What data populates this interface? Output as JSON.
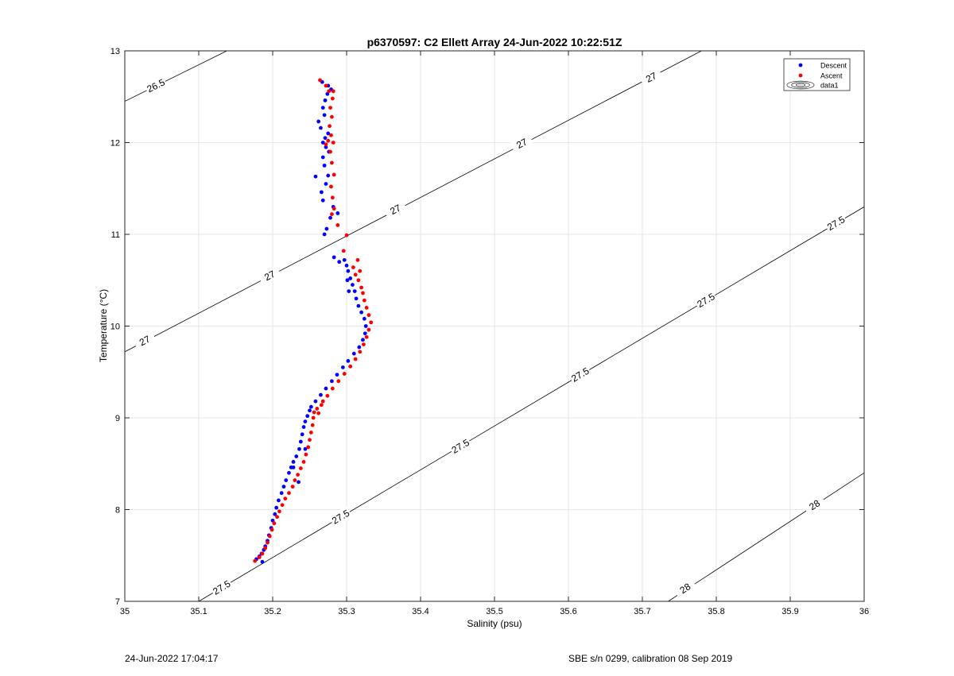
{
  "chart_data": {
    "type": "scatter",
    "title": "p6370597: C2 Ellett Array 24-Jun-2022 10:22:51Z",
    "xlabel": "Salinity (psu)",
    "ylabel": "Temperature (°C)",
    "xlim": [
      35,
      36
    ],
    "ylim": [
      7,
      13
    ],
    "xticks": [
      "35",
      "35.1",
      "35.2",
      "35.3",
      "35.4",
      "35.5",
      "35.6",
      "35.7",
      "35.8",
      "35.9",
      "36"
    ],
    "yticks": [
      "7",
      "8",
      "9",
      "10",
      "11",
      "12",
      "13"
    ],
    "grid": true,
    "legend": {
      "placement": "top-right",
      "entries": [
        "Descent",
        "Ascent",
        "data1"
      ]
    },
    "contours": [
      {
        "level": "26.5",
        "points": [
          [
            35.0,
            12.45
          ],
          [
            35.138,
            13.0
          ]
        ],
        "labels": [
          [
            35.042,
            12.62
          ]
        ]
      },
      {
        "level": "27",
        "points": [
          [
            35.0,
            9.72
          ],
          [
            35.78,
            13.0
          ]
        ],
        "labels": [
          [
            35.027,
            9.84
          ],
          [
            35.196,
            10.55
          ],
          [
            35.366,
            11.27
          ],
          [
            35.537,
            11.99
          ],
          [
            35.712,
            12.71
          ]
        ]
      },
      {
        "level": "27.5",
        "points": [
          [
            35.1,
            7.0
          ],
          [
            36.0,
            11.3
          ]
        ],
        "labels": [
          [
            35.131,
            7.15
          ],
          [
            35.292,
            7.92
          ],
          [
            35.454,
            8.69
          ],
          [
            35.616,
            9.47
          ],
          [
            35.786,
            10.28
          ],
          [
            35.962,
            11.12
          ]
        ]
      },
      {
        "level": "28",
        "points": [
          [
            35.735,
            7.0
          ],
          [
            36.0,
            8.4
          ]
        ],
        "labels": [
          [
            35.758,
            7.14
          ],
          [
            35.933,
            8.05
          ]
        ]
      }
    ],
    "series": [
      {
        "name": "Descent",
        "color": "#0000ff",
        "points": [
          [
            35.186,
            7.43
          ],
          [
            35.178,
            7.46
          ],
          [
            35.182,
            7.49
          ],
          [
            35.185,
            7.52
          ],
          [
            35.188,
            7.56
          ],
          [
            35.19,
            7.6
          ],
          [
            35.193,
            7.66
          ],
          [
            35.195,
            7.72
          ],
          [
            35.198,
            7.8
          ],
          [
            35.2,
            7.88
          ],
          [
            35.203,
            7.95
          ],
          [
            35.205,
            8.02
          ],
          [
            35.208,
            8.1
          ],
          [
            35.212,
            8.18
          ],
          [
            35.215,
            8.25
          ],
          [
            35.218,
            8.32
          ],
          [
            35.222,
            8.4
          ],
          [
            35.225,
            8.46
          ],
          [
            35.228,
            8.52
          ],
          [
            35.232,
            8.58
          ],
          [
            35.236,
            8.66
          ],
          [
            35.238,
            8.74
          ],
          [
            35.24,
            8.82
          ],
          [
            35.242,
            8.9
          ],
          [
            35.244,
            8.96
          ],
          [
            35.247,
            9.02
          ],
          [
            35.25,
            9.08
          ],
          [
            35.252,
            9.12
          ],
          [
            35.258,
            9.18
          ],
          [
            35.265,
            9.25
          ],
          [
            35.272,
            9.32
          ],
          [
            35.28,
            9.4
          ],
          [
            35.287,
            9.47
          ],
          [
            35.295,
            9.55
          ],
          [
            35.302,
            9.62
          ],
          [
            35.31,
            9.7
          ],
          [
            35.317,
            9.77
          ],
          [
            35.322,
            9.85
          ],
          [
            35.325,
            9.92
          ],
          [
            35.326,
            10.0
          ],
          [
            35.324,
            10.08
          ],
          [
            35.32,
            10.15
          ],
          [
            35.316,
            10.22
          ],
          [
            35.313,
            10.3
          ],
          [
            35.311,
            10.38
          ],
          [
            35.308,
            10.45
          ],
          [
            35.305,
            10.52
          ],
          [
            35.302,
            10.6
          ],
          [
            35.3,
            10.66
          ],
          [
            35.297,
            10.72
          ],
          [
            35.301,
            10.5
          ],
          [
            35.303,
            10.38
          ],
          [
            35.288,
            11.23
          ],
          [
            35.282,
            11.3
          ],
          [
            35.278,
            11.18
          ],
          [
            35.273,
            11.06
          ],
          [
            35.27,
            11.0
          ],
          [
            35.268,
            11.37
          ],
          [
            35.266,
            11.46
          ],
          [
            35.272,
            11.55
          ],
          [
            35.275,
            11.64
          ],
          [
            35.27,
            11.75
          ],
          [
            35.258,
            11.63
          ],
          [
            35.268,
            11.84
          ],
          [
            35.276,
            11.9
          ],
          [
            35.272,
            11.95
          ],
          [
            35.268,
            12.0
          ],
          [
            35.271,
            12.05
          ],
          [
            35.275,
            12.1
          ],
          [
            35.265,
            12.16
          ],
          [
            35.262,
            12.23
          ],
          [
            35.27,
            12.3
          ],
          [
            35.268,
            12.38
          ],
          [
            35.271,
            12.46
          ],
          [
            35.274,
            12.53
          ],
          [
            35.279,
            12.58
          ],
          [
            35.275,
            12.62
          ],
          [
            35.267,
            12.66
          ],
          [
            35.283,
            10.75
          ],
          [
            35.29,
            10.7
          ],
          [
            35.228,
            8.46
          ],
          [
            35.244,
            8.66
          ],
          [
            35.235,
            8.3
          ]
        ]
      },
      {
        "name": "Ascent",
        "color": "#ff0000",
        "points": [
          [
            35.176,
            7.44
          ],
          [
            35.182,
            7.48
          ],
          [
            35.186,
            7.52
          ],
          [
            35.19,
            7.58
          ],
          [
            35.193,
            7.64
          ],
          [
            35.196,
            7.71
          ],
          [
            35.199,
            7.78
          ],
          [
            35.202,
            7.85
          ],
          [
            35.206,
            7.92
          ],
          [
            35.209,
            7.98
          ],
          [
            35.213,
            8.05
          ],
          [
            35.217,
            8.12
          ],
          [
            35.222,
            8.18
          ],
          [
            35.227,
            8.25
          ],
          [
            35.23,
            8.32
          ],
          [
            35.234,
            8.38
          ],
          [
            35.238,
            8.45
          ],
          [
            35.242,
            8.52
          ],
          [
            35.245,
            8.6
          ],
          [
            35.248,
            8.68
          ],
          [
            35.25,
            8.76
          ],
          [
            35.252,
            8.84
          ],
          [
            35.254,
            8.92
          ],
          [
            35.255,
            9.0
          ],
          [
            35.256,
            9.06
          ],
          [
            35.262,
            9.05
          ],
          [
            35.266,
            9.14
          ],
          [
            35.274,
            9.24
          ],
          [
            35.281,
            9.32
          ],
          [
            35.289,
            9.4
          ],
          [
            35.297,
            9.48
          ],
          [
            35.305,
            9.56
          ],
          [
            35.312,
            9.64
          ],
          [
            35.318,
            9.72
          ],
          [
            35.323,
            9.8
          ],
          [
            35.327,
            9.88
          ],
          [
            35.33,
            9.96
          ],
          [
            35.333,
            10.04
          ],
          [
            35.33,
            10.12
          ],
          [
            35.327,
            10.2
          ],
          [
            35.324,
            10.28
          ],
          [
            35.322,
            10.36
          ],
          [
            35.32,
            10.42
          ],
          [
            35.316,
            10.5
          ],
          [
            35.312,
            10.56
          ],
          [
            35.309,
            10.64
          ],
          [
            35.3,
            10.99
          ],
          [
            35.296,
            10.82
          ],
          [
            35.318,
            10.6
          ],
          [
            35.315,
            10.72
          ],
          [
            35.28,
            11.22
          ],
          [
            35.283,
            11.28
          ],
          [
            35.281,
            11.4
          ],
          [
            35.279,
            11.52
          ],
          [
            35.283,
            11.65
          ],
          [
            35.28,
            11.78
          ],
          [
            35.278,
            11.9
          ],
          [
            35.282,
            12.0
          ],
          [
            35.279,
            12.08
          ],
          [
            35.277,
            12.18
          ],
          [
            35.28,
            12.28
          ],
          [
            35.278,
            12.38
          ],
          [
            35.281,
            12.48
          ],
          [
            35.276,
            12.56
          ],
          [
            35.272,
            12.62
          ],
          [
            35.264,
            12.68
          ],
          [
            35.282,
            12.56
          ],
          [
            35.275,
            12.02
          ],
          [
            35.272,
            11.98
          ],
          [
            35.288,
            11.1
          ],
          [
            35.26,
            9.1
          ],
          [
            35.268,
            9.18
          ]
        ]
      }
    ]
  },
  "footer": {
    "left": "24-Jun-2022 17:04:17",
    "right": "SBE s/n 0299, calibration 08 Sep 2019"
  }
}
